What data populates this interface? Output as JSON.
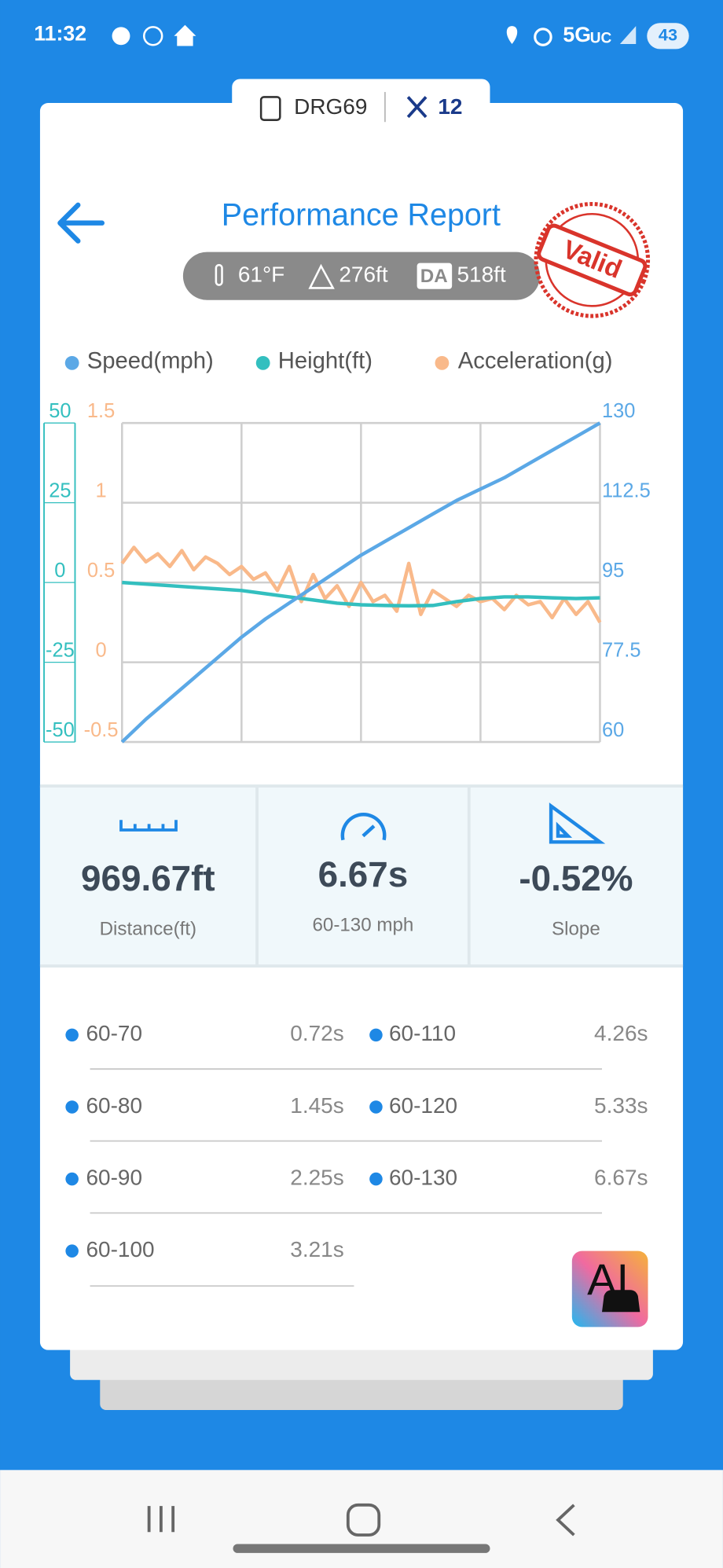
{
  "status_bar": {
    "time": "11:32",
    "network": "5G",
    "network_suffix": "UC",
    "battery": "43"
  },
  "device": {
    "name": "DRG69",
    "count": "12"
  },
  "title": "Performance Report",
  "conditions": {
    "temperature": "61°F",
    "altitude": "276ft",
    "da_label": "DA",
    "density_altitude": "518ft"
  },
  "stamp": "Valid",
  "chart_data": {
    "type": "line",
    "grid": true,
    "ylim": [
      -50,
      50
    ],
    "yticks": [
      -50,
      -25,
      0,
      25,
      50
    ],
    "y2lim": [
      60,
      130
    ],
    "y2ticks": [
      60,
      77.5,
      95,
      112.5,
      130
    ],
    "y3lim": [
      -0.5,
      1.5
    ],
    "y3ticks": [
      -0.5,
      0,
      0.5,
      1,
      1.5
    ],
    "series": [
      {
        "name": "Speed(mph)",
        "color": "#5ba8e6",
        "axis": "y2",
        "values": [
          60,
          65,
          69.5,
          74,
          78.5,
          83,
          87,
          90.5,
          94,
          97.5,
          101,
          104,
          107,
          110,
          113,
          115.5,
          118,
          121,
          124,
          127,
          130
        ]
      },
      {
        "name": "Height(ft)",
        "color": "#33bfbf",
        "axis": "y",
        "values": [
          0,
          -0.5,
          -1,
          -1.5,
          -2,
          -2.5,
          -3.5,
          -4.5,
          -5.5,
          -6.5,
          -7,
          -7.2,
          -7.3,
          -7.2,
          -6,
          -5,
          -4.5,
          -4.5,
          -4.8,
          -5,
          -4.8
        ]
      },
      {
        "name": "Acceleration(g)",
        "color": "#f9b98a",
        "axis": "y3",
        "values": [
          0.62,
          0.72,
          0.63,
          0.68,
          0.6,
          0.7,
          0.58,
          0.66,
          0.62,
          0.55,
          0.6,
          0.52,
          0.56,
          0.45,
          0.6,
          0.38,
          0.55,
          0.4,
          0.48,
          0.35,
          0.5,
          0.38,
          0.42,
          0.32,
          0.62,
          0.3,
          0.45,
          0.4,
          0.35,
          0.42,
          0.38,
          0.4,
          0.33,
          0.42,
          0.36,
          0.38,
          0.28,
          0.4,
          0.3,
          0.38,
          0.25
        ]
      }
    ]
  },
  "stats": [
    {
      "value": "969.67ft",
      "label": "Distance(ft)"
    },
    {
      "value": "6.67s",
      "label": "60-130 mph"
    },
    {
      "value": "-0.52%",
      "label": "Slope"
    }
  ],
  "splits": [
    {
      "range": "60-70",
      "time": "0.72s"
    },
    {
      "range": "60-80",
      "time": "1.45s"
    },
    {
      "range": "60-90",
      "time": "2.25s"
    },
    {
      "range": "60-100",
      "time": "3.21s"
    },
    {
      "range": "60-110",
      "time": "4.26s"
    },
    {
      "range": "60-120",
      "time": "5.33s"
    },
    {
      "range": "60-130",
      "time": "6.67s"
    }
  ],
  "ai_button": "AI"
}
